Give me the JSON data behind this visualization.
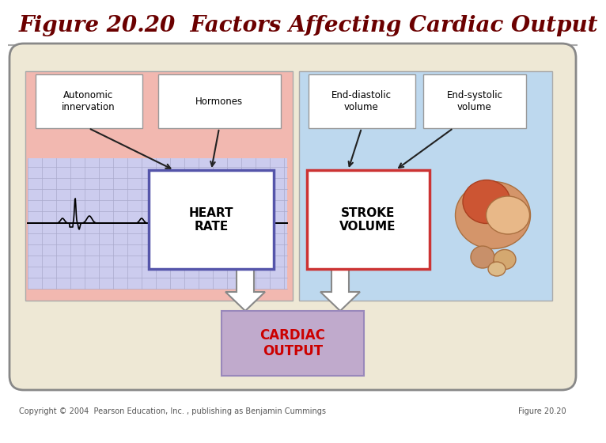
{
  "title": "Figure 20.20  Factors Affecting Cardiac Output",
  "title_color": "#6B0000",
  "title_fontsize": 20,
  "copyright_text": "Copyright © 2004  Pearson Education, Inc. , publishing as Benjamin Cummings",
  "figure_label": "Figure 20.20",
  "bg_outer": "#EEE8D5",
  "outer_box_edge": "#888888",
  "left_panel_color": "#F2B8B0",
  "right_panel_color": "#BDD8EE",
  "white_box_color": "#FFFFFF",
  "heart_rate_border_color": "#5555AA",
  "stroke_volume_border_color": "#CC3333",
  "cardiac_output_bg": "#C0AACC",
  "cardiac_output_text_color": "#CC0000",
  "ecg_bg_color": "#CCCCEE",
  "ecg_grid_color": "#AAAACC",
  "ecg_line_color": "#000000",
  "box_text_color": "#000000",
  "small_box_labels": [
    "Autonomic\ninnervation",
    "Hormones",
    "End-diastolic\nvolume",
    "End-systolic\nvolume"
  ],
  "heart_rate_label": "HEART\nRATE",
  "stroke_volume_label": "STROKE\nVOLUME",
  "cardiac_output_label": "CARDIAC\nOUTPUT",
  "arrow_white": "#FFFFFF",
  "arrow_gray": "#999999",
  "small_arrow_color": "#222222"
}
